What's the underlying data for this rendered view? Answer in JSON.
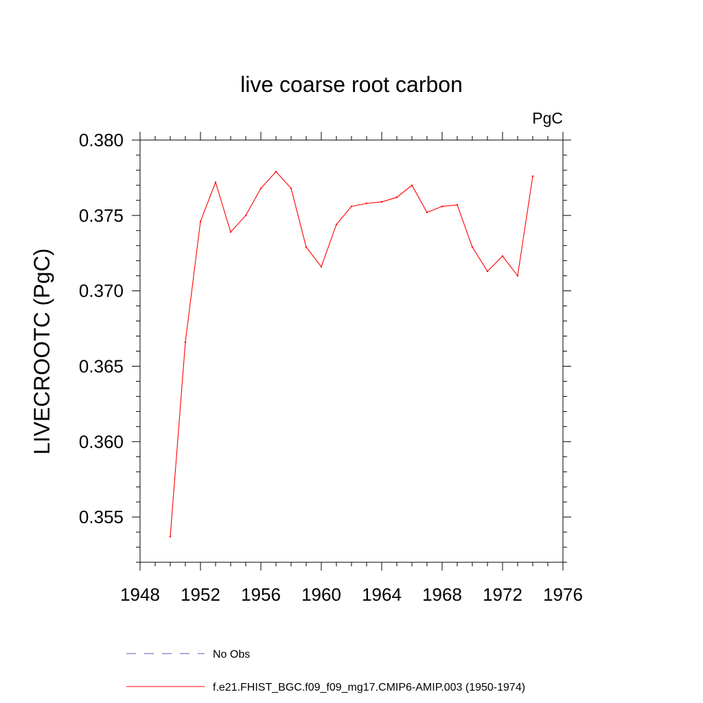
{
  "chart_data": {
    "type": "line",
    "title": "live coarse root carbon",
    "units_label": "PgC",
    "xlabel": "",
    "ylabel": "LIVECROOTC  (PgC)",
    "xlim": [
      1948,
      1976
    ],
    "ylim": [
      0.352,
      0.38
    ],
    "x_ticks": [
      1948,
      1952,
      1956,
      1960,
      1964,
      1968,
      1972,
      1976
    ],
    "x_tick_labels": [
      "1948",
      "1952",
      "1956",
      "1960",
      "1964",
      "1968",
      "1972",
      "1976"
    ],
    "x_minor_step": 1,
    "y_ticks": [
      0.355,
      0.36,
      0.365,
      0.37,
      0.375,
      0.38
    ],
    "y_tick_labels": [
      "0.355",
      "0.360",
      "0.365",
      "0.370",
      "0.375",
      "0.380"
    ],
    "y_minor_step": 0.001,
    "grid": false,
    "legend_position": "bottom",
    "series": [
      {
        "name": "No Obs",
        "color": "#5a5ab4",
        "dash": "dashed",
        "x": [],
        "values": []
      },
      {
        "name": "f.e21.FHIST_BGC.f09_f09_mg17.CMIP6-AMIP.003 (1950-1974)",
        "color": "#ff0000",
        "dash": "solid",
        "x": [
          1950,
          1951,
          1952,
          1953,
          1954,
          1955,
          1956,
          1957,
          1958,
          1959,
          1960,
          1961,
          1962,
          1963,
          1964,
          1965,
          1966,
          1967,
          1968,
          1969,
          1970,
          1971,
          1972,
          1973,
          1974
        ],
        "values": [
          0.3537,
          0.3666,
          0.3746,
          0.3772,
          0.3739,
          0.375,
          0.3768,
          0.3779,
          0.3768,
          0.3729,
          0.3716,
          0.3744,
          0.3756,
          0.3758,
          0.3759,
          0.3762,
          0.377,
          0.3752,
          0.3756,
          0.3757,
          0.3729,
          0.3713,
          0.3723,
          0.371,
          0.3776
        ]
      }
    ]
  }
}
